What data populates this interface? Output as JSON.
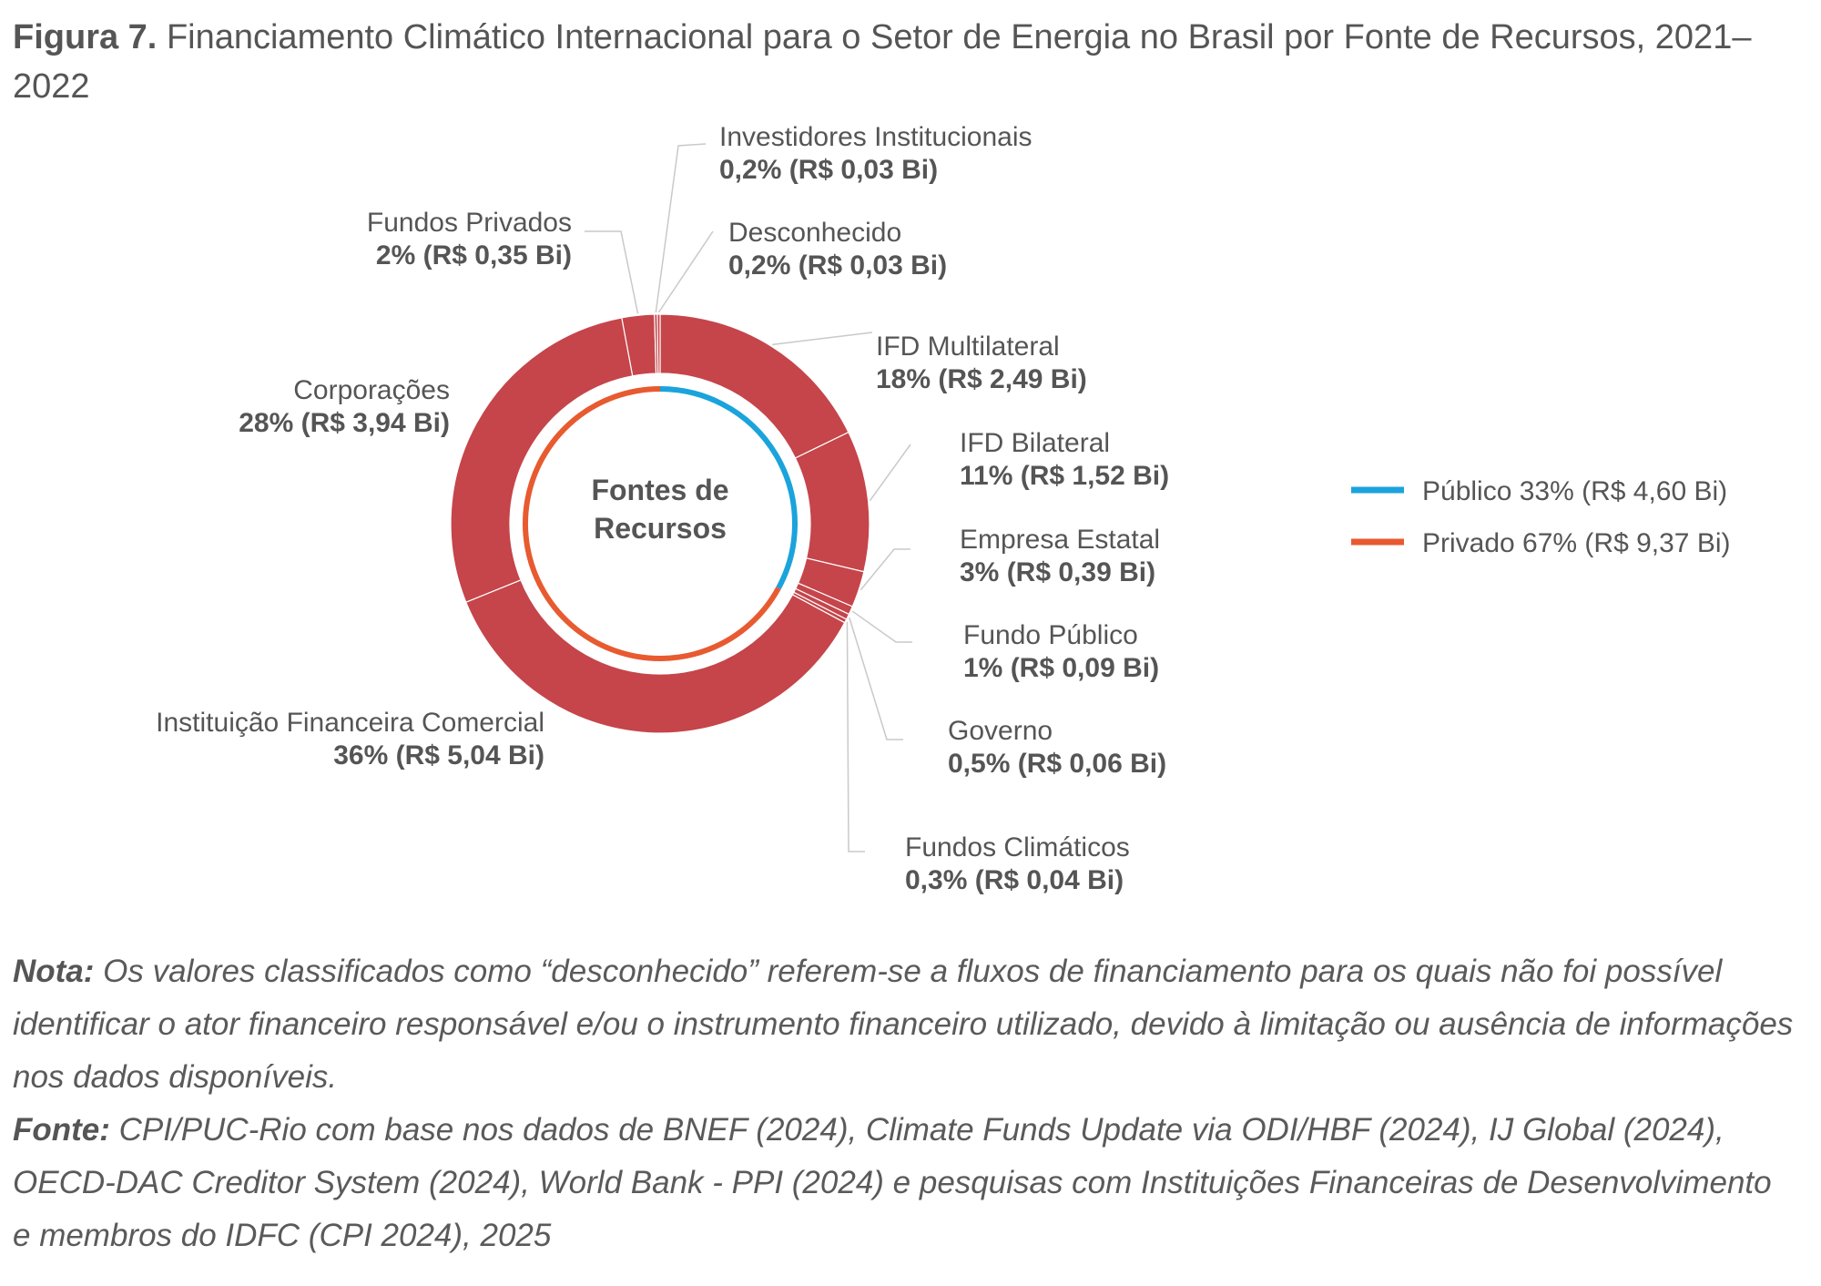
{
  "title": {
    "prefix": "Figura 7.",
    "text": "Financiamento Climático Internacional para o Setor de Energia no Brasil por Fonte de Recursos, 2021–2022"
  },
  "chart_data": {
    "type": "pie",
    "style": "donut",
    "center_label": [
      "Fontes de",
      "Recursos"
    ],
    "outer_color": "#c5454a",
    "slices": [
      {
        "name": "IFD Multilateral",
        "percent_label": "18%",
        "value_label": "(R$ 2,49 Bi)",
        "value": 2.49
      },
      {
        "name": "IFD Bilateral",
        "percent_label": "11%",
        "value_label": "(R$ 1,52 Bi)",
        "value": 1.52
      },
      {
        "name": "Empresa Estatal",
        "percent_label": "3%",
        "value_label": "(R$ 0,39 Bi)",
        "value": 0.39
      },
      {
        "name": "Fundo Público",
        "percent_label": "1%",
        "value_label": "(R$ 0,09 Bi)",
        "value": 0.09
      },
      {
        "name": "Governo",
        "percent_label": "0,5%",
        "value_label": "(R$ 0,06 Bi)",
        "value": 0.06
      },
      {
        "name": "Fundos Climáticos",
        "percent_label": "0,3%",
        "value_label": "(R$ 0,04 Bi)",
        "value": 0.04
      },
      {
        "name": "Instituição Financeira Comercial",
        "percent_label": "36%",
        "value_label": "(R$ 5,04 Bi)",
        "value": 5.04
      },
      {
        "name": "Corporações",
        "percent_label": "28%",
        "value_label": "(R$ 3,94 Bi)",
        "value": 3.94
      },
      {
        "name": "Fundos Privados",
        "percent_label": "2%",
        "value_label": "(R$ 0,35 Bi)",
        "value": 0.35
      },
      {
        "name": "Investidores Institucionais",
        "percent_label": "0,2%",
        "value_label": "(R$ 0,03 Bi)",
        "value": 0.03
      },
      {
        "name": "Desconhecido",
        "percent_label": "0,2%",
        "value_label": "(R$ 0,03 Bi)",
        "value": 0.03
      }
    ],
    "inner_ring": [
      {
        "name": "Público",
        "percent": 33,
        "value": 4.6,
        "color": "#1ba3dc",
        "legend_label": "Público 33% (R$ 4,60 Bi)"
      },
      {
        "name": "Privado",
        "percent": 67,
        "value": 9.37,
        "color": "#e85a30",
        "legend_label": "Privado 67% (R$ 9,37 Bi)"
      }
    ],
    "legend_position": "right"
  },
  "notes": {
    "nota_label": "Nota:",
    "nota_text": " Os valores classificados como “desconhecido” referem-se a fluxos de financiamento para os quais não foi possível identificar o ator financeiro responsável e/ou o instrumento financeiro utilizado, devido à limitação ou ausência de informações nos dados disponíveis.",
    "fonte_label": "Fonte:",
    "fonte_text": " CPI/PUC-Rio com base nos dados de BNEF (2024), Climate Funds Update via ODI/HBF (2024), IJ Global (2024), OECD-DAC Creditor System (2024), World Bank - PPI (2024) e pesquisas com Instituições Financeiras de Desenvolvimento e membros do IDFC (CPI 2024), 2025"
  }
}
